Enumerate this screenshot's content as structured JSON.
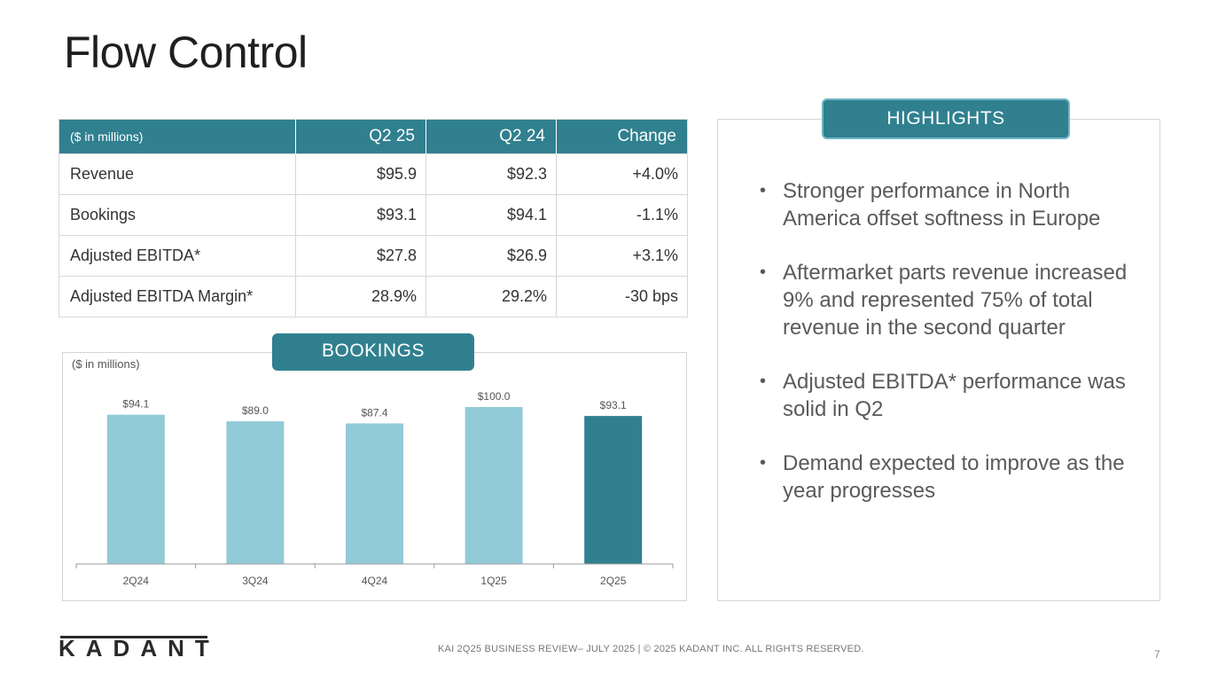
{
  "title": "Flow Control",
  "table": {
    "headers": [
      "($ in millions)",
      "Q2 25",
      "Q2 24",
      "Change"
    ],
    "rows": [
      [
        "Revenue",
        "$95.9",
        "$92.3",
        "+4.0%"
      ],
      [
        "Bookings",
        "$93.1",
        "$94.1",
        "-1.1%"
      ],
      [
        "Adjusted EBITDA*",
        "$27.8",
        "$26.9",
        "+3.1%"
      ],
      [
        "Adjusted EBITDA Margin*",
        "28.9%",
        "29.2%",
        "-30 bps"
      ]
    ]
  },
  "bookings": {
    "label": "BOOKINGS",
    "unit": "($ in millions)"
  },
  "highlights": {
    "label": "HIGHLIGHTS",
    "bullets": [
      "Stronger performance in North America offset softness in Europe",
      "Aftermarket parts revenue increased 9% and represented 75% of total revenue in the second quarter",
      "Adjusted EBITDA* performance was solid in Q2",
      "Demand expected to improve as the year progresses"
    ]
  },
  "chart_data": {
    "type": "bar",
    "title": "BOOKINGS",
    "ylabel": "($ in millions)",
    "categories": [
      "2Q24",
      "3Q24",
      "4Q24",
      "1Q25",
      "2Q25"
    ],
    "values": [
      94.1,
      89.0,
      87.4,
      100.0,
      93.1
    ],
    "data_labels": [
      "$94.1",
      "$89.0",
      "$87.4",
      "$100.0",
      "$93.1"
    ],
    "ylim": [
      0,
      100
    ],
    "grid": false,
    "colors": [
      "#92cad8",
      "#92cad8",
      "#92cad8",
      "#92cad8",
      "#30808f"
    ]
  },
  "footer": {
    "logo": "KADANT",
    "text": "KAI 2Q25 BUSINESS REVIEW– JULY 2025  |  © 2025 KADANT INC. ALL RIGHTS RESERVED.",
    "page": "7"
  }
}
